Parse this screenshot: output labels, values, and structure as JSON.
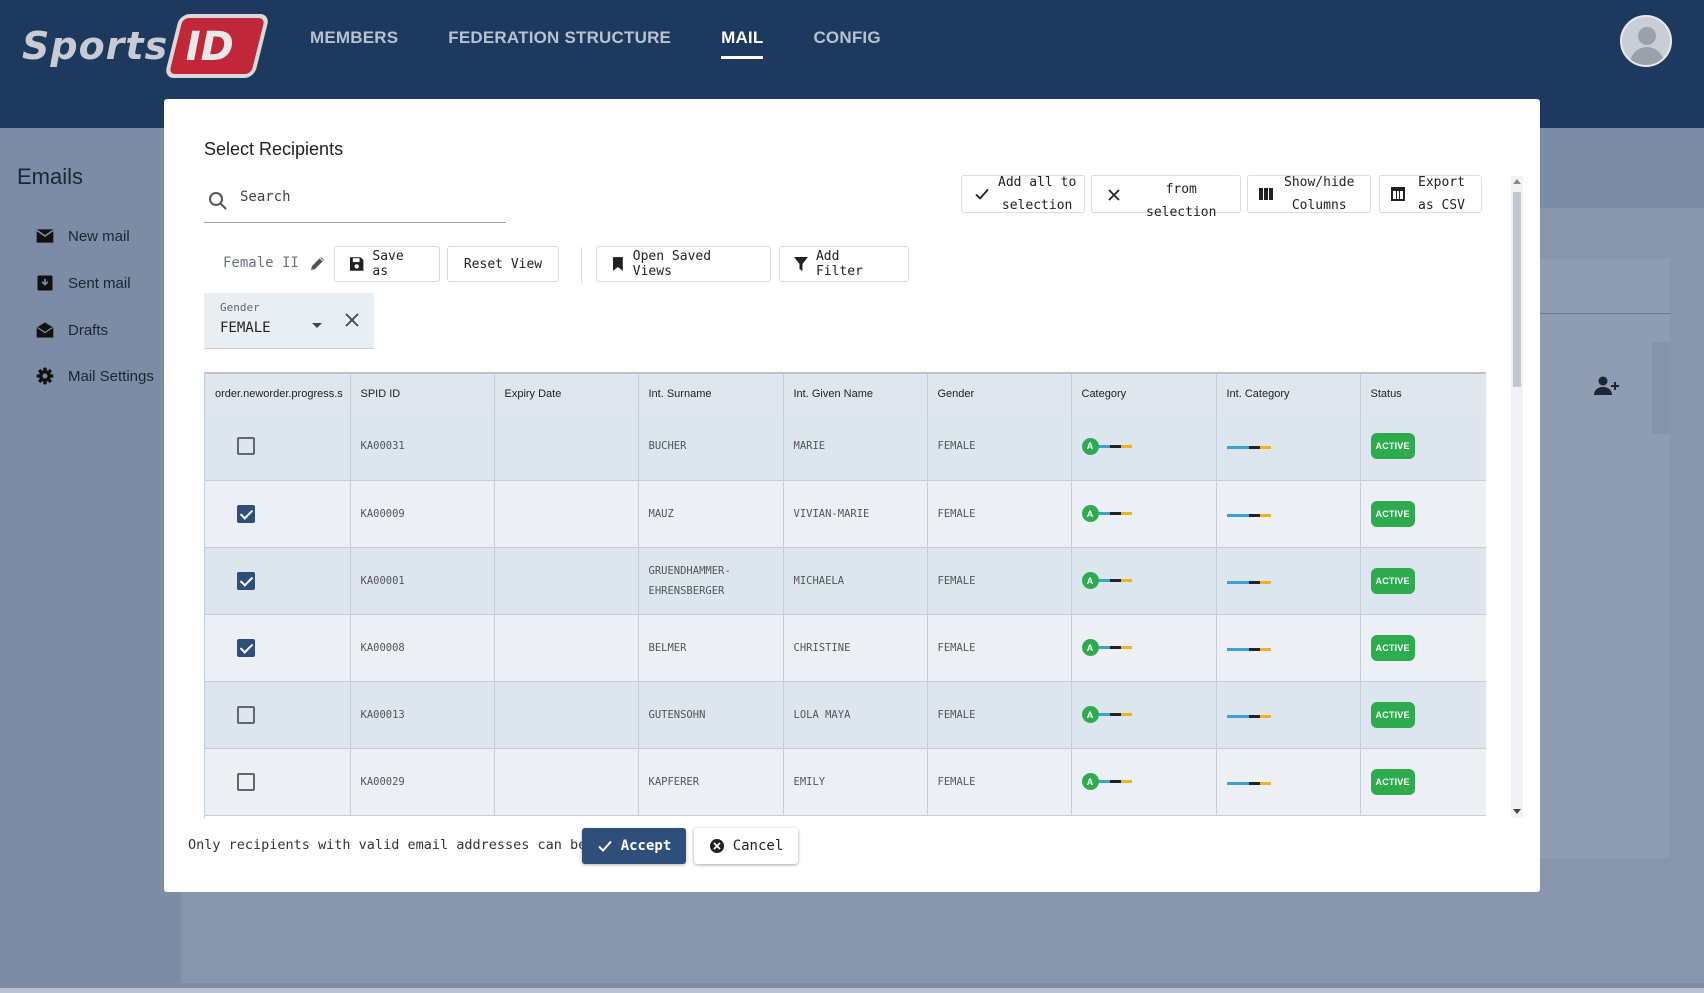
{
  "colors": {
    "topbar": "#1d3a5e",
    "accent": "#2d4f7a",
    "status_green": "#2eaa4f",
    "brand_red": "#c0283a"
  },
  "logo": {
    "text": "Sports",
    "badge": "ID"
  },
  "nav": {
    "items": [
      "MEMBERS",
      "FEDERATION STRUCTURE",
      "MAIL",
      "CONFIG"
    ],
    "active": "MAIL"
  },
  "sidebar": {
    "title": "Emails",
    "items": [
      {
        "label": "New mail",
        "icon": "envelope-icon"
      },
      {
        "label": "Sent mail",
        "icon": "outbox-icon"
      },
      {
        "label": "Drafts",
        "icon": "drafts-icon"
      },
      {
        "label": "Mail Settings",
        "icon": "gear-icon"
      }
    ]
  },
  "modal": {
    "title": "Select Recipients",
    "search_placeholder": "Search",
    "toolbar": {
      "add_all": [
        "Add all to",
        "selection"
      ],
      "remove": [
        "from",
        "selection"
      ],
      "show_hide": [
        "Show/hide",
        "Columns"
      ],
      "export": [
        "Export",
        "as CSV"
      ]
    },
    "view": {
      "name": "Female II",
      "save_as": "Save as",
      "reset": "Reset View",
      "open_saved": "Open Saved Views",
      "add_filter": "Add Filter"
    },
    "filter": {
      "label": "Gender",
      "value": "FEMALE"
    },
    "table": {
      "columns": [
        "order.neworder.progress.s",
        "SPID ID",
        "Expiry Date",
        "Int. Surname",
        "Int. Given Name",
        "Gender",
        "Category",
        "Int. Category",
        "Status"
      ],
      "rows": [
        {
          "checked": false,
          "spid": "KA00031",
          "expiry": "",
          "surname": [
            "BUCHER"
          ],
          "given": "MARIE",
          "gender": "FEMALE",
          "category": "A",
          "status": "ACTIVE"
        },
        {
          "checked": true,
          "spid": "KA00009",
          "expiry": "",
          "surname": [
            "MAUZ"
          ],
          "given": "VIVIAN-MARIE",
          "gender": "FEMALE",
          "category": "A",
          "status": "ACTIVE"
        },
        {
          "checked": true,
          "spid": "KA00001",
          "expiry": "",
          "surname": [
            "GRUENDHAMMER-",
            "EHRENSBERGER"
          ],
          "given": "MICHAELA",
          "gender": "FEMALE",
          "category": "A",
          "status": "ACTIVE"
        },
        {
          "checked": true,
          "spid": "KA00008",
          "expiry": "",
          "surname": [
            "BELMER"
          ],
          "given": "CHRISTINE",
          "gender": "FEMALE",
          "category": "A",
          "status": "ACTIVE"
        },
        {
          "checked": false,
          "spid": "KA00013",
          "expiry": "",
          "surname": [
            "GUTENSOHN"
          ],
          "given": "LOLA MAYA",
          "gender": "FEMALE",
          "category": "A",
          "status": "ACTIVE"
        },
        {
          "checked": false,
          "spid": "KA00029",
          "expiry": "",
          "surname": [
            "KAPFERER"
          ],
          "given": "EMILY",
          "gender": "FEMALE",
          "category": "A",
          "status": "ACTIVE"
        }
      ]
    },
    "footer": {
      "note": "Only recipients with valid email addresses can be selected",
      "accept": "Accept",
      "cancel": "Cancel"
    }
  }
}
